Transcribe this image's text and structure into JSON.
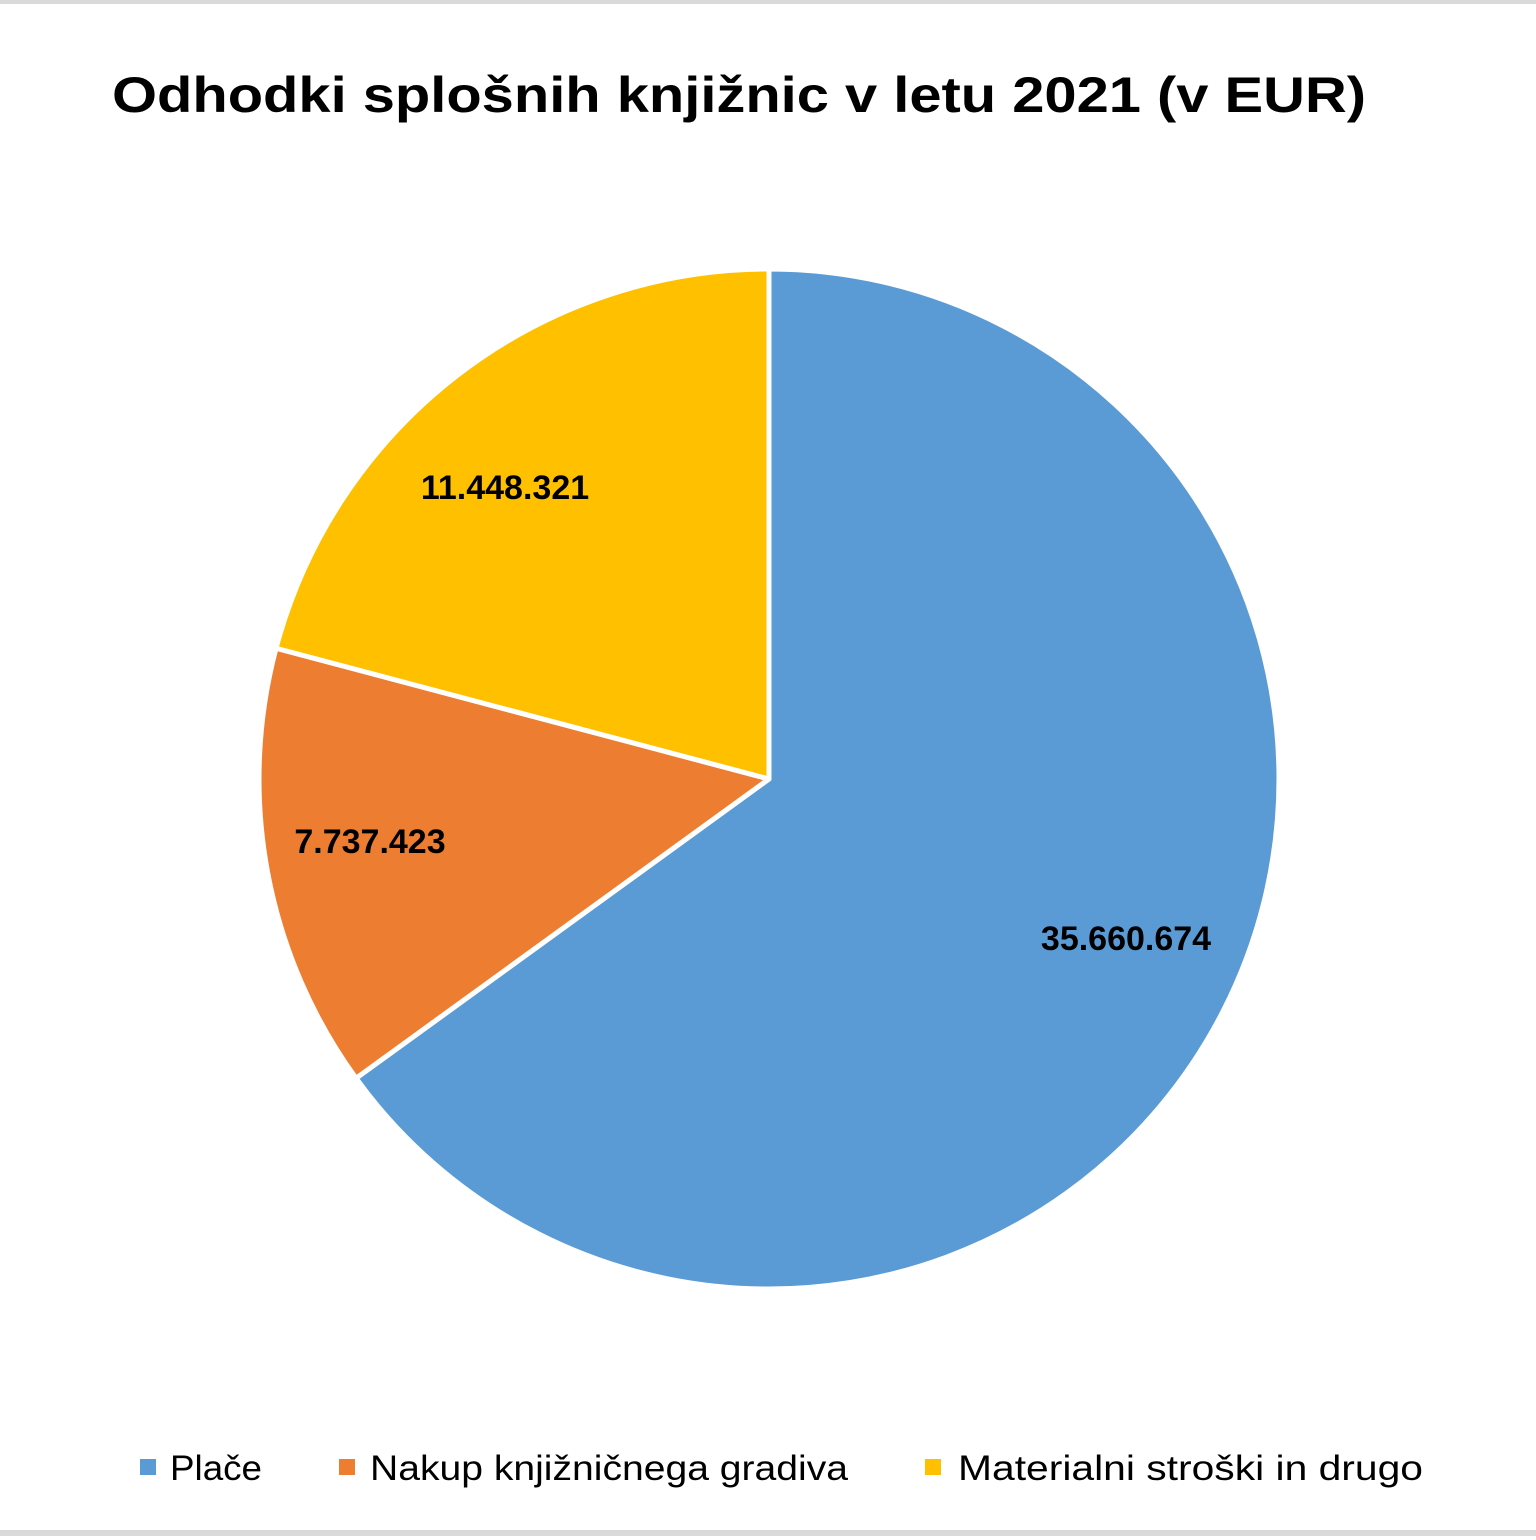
{
  "chart_data": {
    "type": "pie",
    "title": "Odhodki splošnih knjižnic v letu 2021 (v EUR)",
    "categories": [
      "Plače",
      "Nakup knjižničnega gradiva",
      "Materialni stroški in drugo"
    ],
    "values": [
      35660674,
      7737423,
      11448321
    ],
    "data_labels": [
      "35.660.674",
      "7.737.423",
      "11.448.321"
    ],
    "colors": [
      "#5b9bd5",
      "#ed7d31",
      "#ffc000"
    ],
    "start_angle": "12 o'clock, clockwise",
    "legend_position": "bottom"
  }
}
